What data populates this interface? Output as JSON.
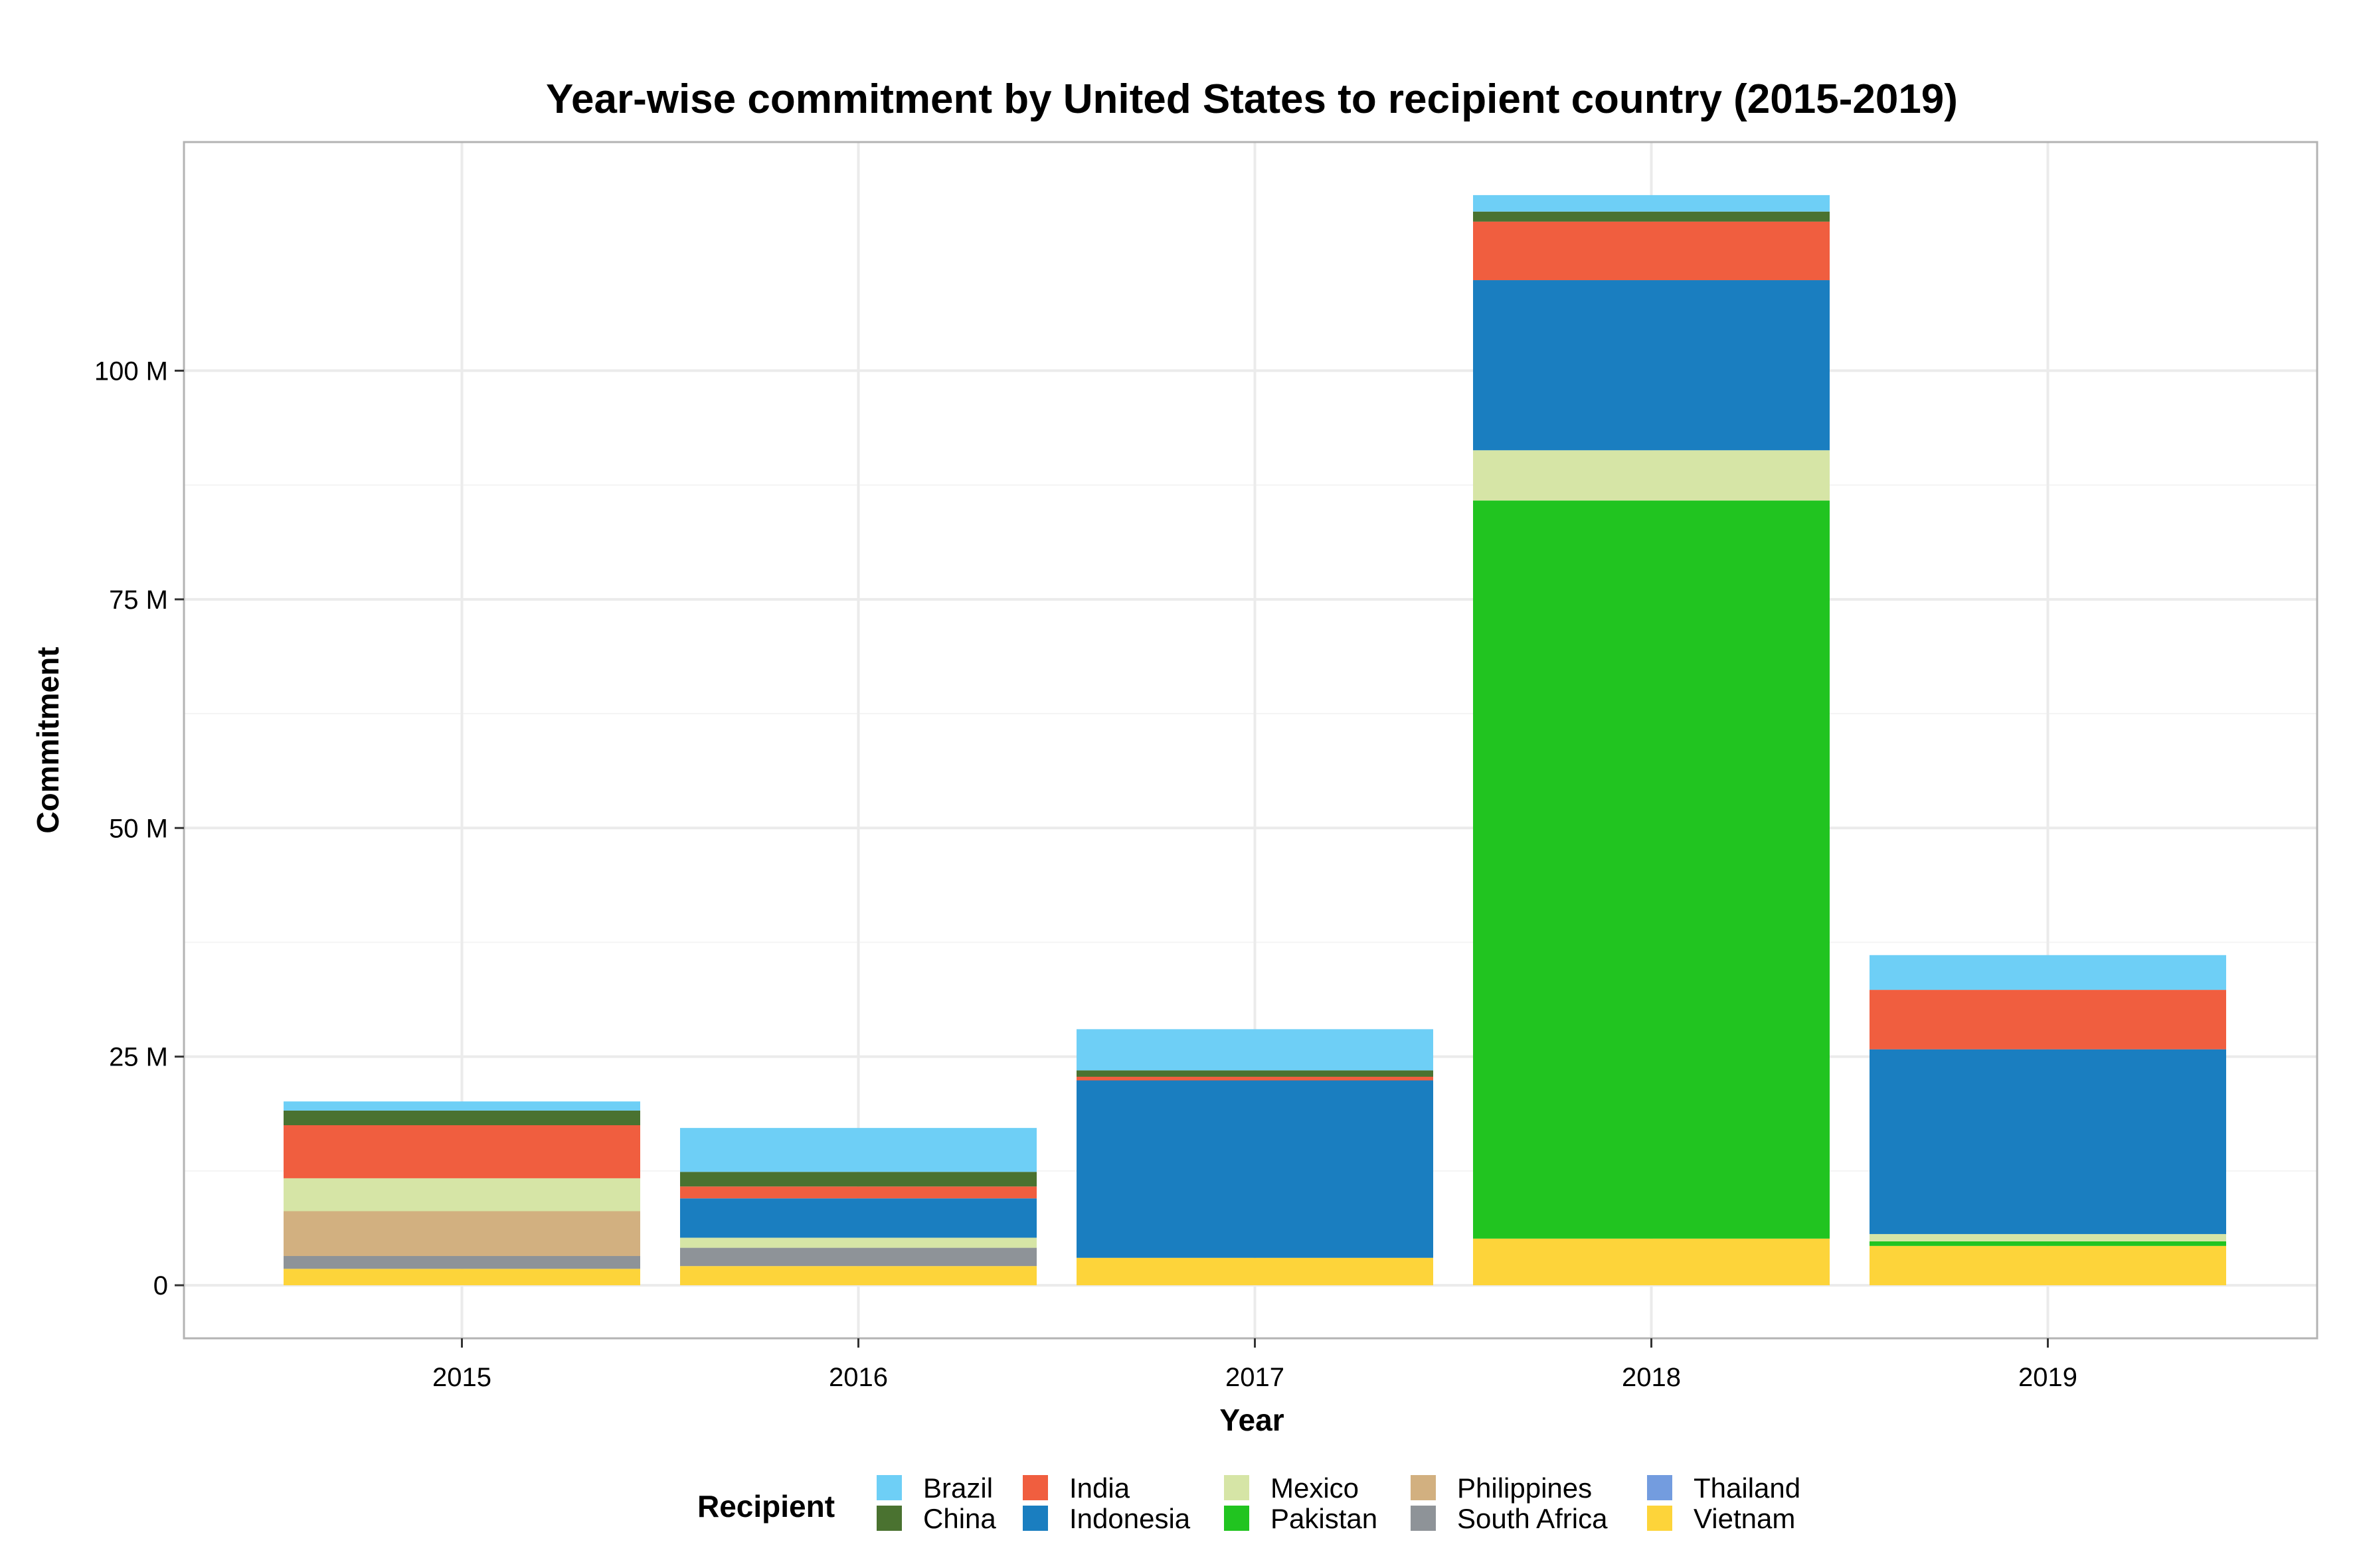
{
  "chart_data": {
    "type": "bar",
    "stacked": true,
    "title": "Year-wise commitment by United States to recipient country (2015-2019)",
    "xlabel": "Year",
    "ylabel": "Commitment",
    "categories": [
      "2015",
      "2016",
      "2017",
      "2018",
      "2019"
    ],
    "yticks": [
      {
        "value": 0,
        "label": "0"
      },
      {
        "value": 25000000,
        "label": "25 M"
      },
      {
        "value": 50000000,
        "label": "50 M"
      },
      {
        "value": 75000000,
        "label": "75 M"
      },
      {
        "value": 100000000,
        "label": "100 M"
      }
    ],
    "ylim": [
      -5800000,
      125000000
    ],
    "grid": true,
    "legend": {
      "title": "Recipient",
      "position": "bottom",
      "columns": [
        [
          "Brazil",
          "China"
        ],
        [
          "India",
          "Indonesia"
        ],
        [
          "Mexico",
          "Pakistan"
        ],
        [
          "Philippines",
          "South Africa"
        ],
        [
          "Thailand",
          "Vietnam"
        ]
      ]
    },
    "stack_order_bottom_to_top": [
      "Vietnam",
      "Thailand",
      "South Africa",
      "Philippines",
      "Pakistan",
      "Mexico",
      "Indonesia",
      "India",
      "China",
      "Brazil"
    ],
    "series": [
      {
        "name": "Brazil",
        "color": "#6ecff6",
        "values": [
          1000000,
          4800000,
          4500000,
          1800000,
          3800000
        ]
      },
      {
        "name": "China",
        "color": "#4a7230",
        "values": [
          1600000,
          1600000,
          700000,
          1100000,
          0
        ]
      },
      {
        "name": "India",
        "color": "#f05e3f",
        "values": [
          5800000,
          1300000,
          400000,
          6400000,
          6500000
        ]
      },
      {
        "name": "Indonesia",
        "color": "#1a7ec0",
        "values": [
          0,
          4300000,
          19400000,
          18600000,
          20200000
        ]
      },
      {
        "name": "Mexico",
        "color": "#d6e5a6",
        "values": [
          3600000,
          1100000,
          0,
          5500000,
          800000
        ]
      },
      {
        "name": "Pakistan",
        "color": "#21c420",
        "values": [
          0,
          0,
          0,
          80700000,
          500000
        ]
      },
      {
        "name": "Philippines",
        "color": "#d2b080",
        "values": [
          4900000,
          0,
          0,
          0,
          0
        ]
      },
      {
        "name": "South Africa",
        "color": "#8e9398",
        "values": [
          1400000,
          2000000,
          0,
          0,
          0
        ]
      },
      {
        "name": "Thailand",
        "color": "#739cdf",
        "values": [
          0,
          0,
          0,
          0,
          0
        ]
      },
      {
        "name": "Vietnam",
        "color": "#fdd43a",
        "values": [
          1800000,
          2100000,
          3000000,
          5100000,
          4300000
        ]
      }
    ]
  }
}
